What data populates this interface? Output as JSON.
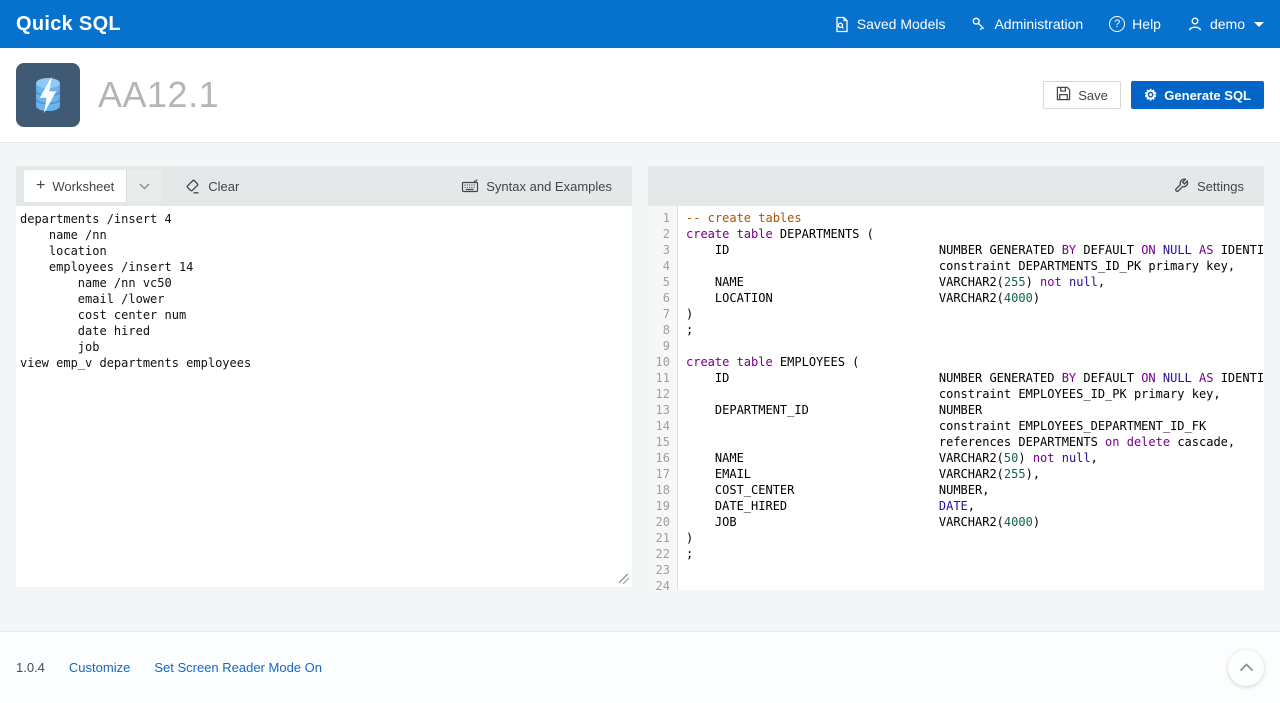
{
  "colors": {
    "header_blue": "#0772cd",
    "hot_button_blue": "#0465c8",
    "link_blue": "#1668c2",
    "syntax_comment": "#aa5500",
    "syntax_keyword": "#770088",
    "syntax_atom": "#221199",
    "syntax_number": "#116644"
  },
  "header": {
    "brand": "Quick SQL",
    "nav": [
      {
        "label": "Saved Models",
        "icon": "saved-models-icon"
      },
      {
        "label": "Administration",
        "icon": "admin-key-icon"
      },
      {
        "label": "Help",
        "icon": "help-icon"
      },
      {
        "label": "demo",
        "icon": "user-icon"
      }
    ],
    "help_glyph": "?"
  },
  "app_bar": {
    "title": "AA12.1",
    "save_label": "Save",
    "generate_label": "Generate SQL",
    "gear_glyph": "⚙"
  },
  "left_panel": {
    "toolbar": {
      "worksheet_label": "Worksheet",
      "plus_glyph": "+",
      "clear_label": "Clear",
      "syntax_label": "Syntax and Examples"
    },
    "worksheet_text": "departments /insert 4\n    name /nn\n    location\n    employees /insert 14\n        name /nn vc50\n        email /lower\n        cost center num\n        date hired\n        job\nview emp_v departments employees"
  },
  "right_panel": {
    "toolbar": {
      "settings_label": "Settings"
    },
    "code_lines": [
      {
        "n": 1,
        "s": [
          [
            "c",
            "-- create tables"
          ]
        ]
      },
      {
        "n": 2,
        "s": [
          [
            "k",
            "create table"
          ],
          [
            "d",
            " DEPARTMENTS ("
          ]
        ]
      },
      {
        "n": 3,
        "s": [
          [
            "d",
            "    ID"
          ],
          [
            "g",
            ""
          ],
          [
            "d",
            "NUMBER GENERATED "
          ],
          [
            "k",
            "BY"
          ],
          [
            "d",
            " DEFAULT "
          ],
          [
            "k",
            "ON"
          ],
          [
            "d",
            " "
          ],
          [
            "a",
            "NULL"
          ],
          [
            "d",
            " "
          ],
          [
            "k",
            "AS"
          ],
          [
            "d",
            " IDENTITY"
          ]
        ]
      },
      {
        "n": 4,
        "s": [
          [
            "g",
            ""
          ],
          [
            "d",
            "constraint DEPARTMENTS_ID_PK primary key,"
          ]
        ]
      },
      {
        "n": 5,
        "s": [
          [
            "d",
            "    NAME"
          ],
          [
            "g",
            ""
          ],
          [
            "d",
            "VARCHAR2("
          ],
          [
            "n",
            "255"
          ],
          [
            "d",
            ") "
          ],
          [
            "k",
            "not"
          ],
          [
            "d",
            " "
          ],
          [
            "a",
            "null"
          ],
          [
            "d",
            ","
          ]
        ]
      },
      {
        "n": 6,
        "s": [
          [
            "d",
            "    LOCATION"
          ],
          [
            "g",
            ""
          ],
          [
            "d",
            "VARCHAR2("
          ],
          [
            "n",
            "4000"
          ],
          [
            "d",
            ")"
          ]
        ]
      },
      {
        "n": 7,
        "s": [
          [
            "d",
            ")"
          ]
        ]
      },
      {
        "n": 8,
        "s": [
          [
            "d",
            ";"
          ]
        ]
      },
      {
        "n": 9,
        "s": []
      },
      {
        "n": 10,
        "s": [
          [
            "k",
            "create table"
          ],
          [
            "d",
            " EMPLOYEES ("
          ]
        ]
      },
      {
        "n": 11,
        "s": [
          [
            "d",
            "    ID"
          ],
          [
            "g",
            ""
          ],
          [
            "d",
            "NUMBER GENERATED "
          ],
          [
            "k",
            "BY"
          ],
          [
            "d",
            " DEFAULT "
          ],
          [
            "k",
            "ON"
          ],
          [
            "d",
            " "
          ],
          [
            "a",
            "NULL"
          ],
          [
            "d",
            " "
          ],
          [
            "k",
            "AS"
          ],
          [
            "d",
            " IDENTITY"
          ]
        ]
      },
      {
        "n": 12,
        "s": [
          [
            "g",
            ""
          ],
          [
            "d",
            "constraint EMPLOYEES_ID_PK primary key,"
          ]
        ]
      },
      {
        "n": 13,
        "s": [
          [
            "d",
            "    DEPARTMENT_ID"
          ],
          [
            "g",
            ""
          ],
          [
            "d",
            "NUMBER"
          ]
        ]
      },
      {
        "n": 14,
        "s": [
          [
            "g",
            ""
          ],
          [
            "d",
            "constraint EMPLOYEES_DEPARTMENT_ID_FK"
          ]
        ]
      },
      {
        "n": 15,
        "s": [
          [
            "g",
            ""
          ],
          [
            "d",
            "references DEPARTMENTS "
          ],
          [
            "k",
            "on"
          ],
          [
            "d",
            " "
          ],
          [
            "k",
            "delete"
          ],
          [
            "d",
            " cascade,"
          ]
        ]
      },
      {
        "n": 16,
        "s": [
          [
            "d",
            "    NAME"
          ],
          [
            "g",
            ""
          ],
          [
            "d",
            "VARCHAR2("
          ],
          [
            "n",
            "50"
          ],
          [
            "d",
            ") "
          ],
          [
            "k",
            "not"
          ],
          [
            "d",
            " "
          ],
          [
            "a",
            "null"
          ],
          [
            "d",
            ","
          ]
        ]
      },
      {
        "n": 17,
        "s": [
          [
            "d",
            "    EMAIL"
          ],
          [
            "g",
            ""
          ],
          [
            "d",
            "VARCHAR2("
          ],
          [
            "n",
            "255"
          ],
          [
            "d",
            "),"
          ]
        ]
      },
      {
        "n": 18,
        "s": [
          [
            "d",
            "    COST_CENTER"
          ],
          [
            "g",
            ""
          ],
          [
            "d",
            "NUMBER,"
          ]
        ]
      },
      {
        "n": 19,
        "s": [
          [
            "d",
            "    DATE_HIRED"
          ],
          [
            "g",
            ""
          ],
          [
            "a",
            "DATE"
          ],
          [
            "d",
            ","
          ]
        ]
      },
      {
        "n": 20,
        "s": [
          [
            "d",
            "    JOB"
          ],
          [
            "g",
            ""
          ],
          [
            "d",
            "VARCHAR2("
          ],
          [
            "n",
            "4000"
          ],
          [
            "d",
            ")"
          ]
        ]
      },
      {
        "n": 21,
        "s": [
          [
            "d",
            ")"
          ]
        ]
      },
      {
        "n": 22,
        "s": [
          [
            "d",
            ";"
          ]
        ]
      },
      {
        "n": 23,
        "s": []
      },
      {
        "n": 24,
        "s": []
      }
    ],
    "type_column": 35
  },
  "footer": {
    "version": "1.0.4",
    "links": [
      {
        "label": "Customize"
      },
      {
        "label": "Set Screen Reader Mode On"
      }
    ]
  }
}
